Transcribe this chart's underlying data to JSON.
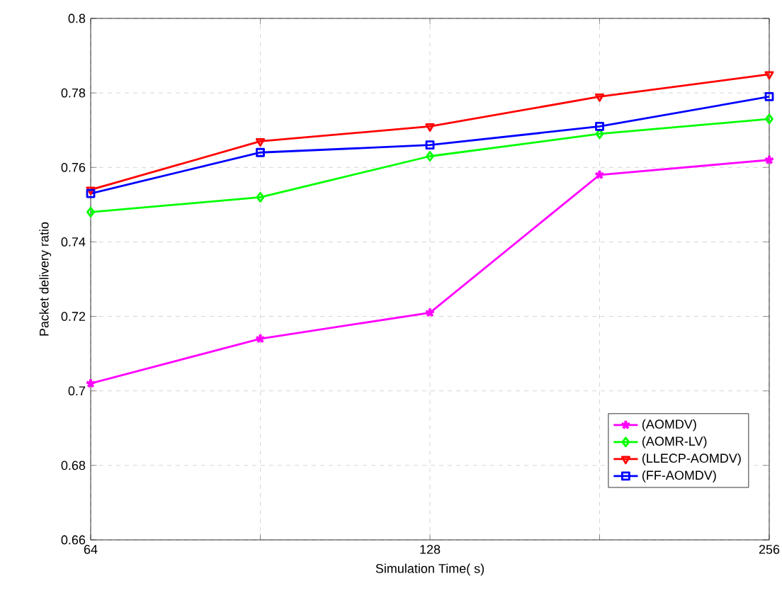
{
  "chart_data": {
    "type": "line",
    "xlabel": "Simulation Time( s)",
    "ylabel": "Packet delivery ratio",
    "categories": [
      "64",
      null,
      "128",
      null,
      "256"
    ],
    "ylim": [
      0.66,
      0.8
    ],
    "yticks": [
      0.66,
      0.68,
      0.7,
      0.72,
      0.74,
      0.76,
      0.78,
      0.8
    ],
    "grid": true,
    "legend": "bottom right",
    "line_style": "solid",
    "series": [
      {
        "name": "(AOMDV)",
        "color": "#ff00ff",
        "marker": "cross",
        "values": [
          0.702,
          0.714,
          0.721,
          0.758,
          0.762
        ]
      },
      {
        "name": "(AOMR-LV)",
        "color": "#00ff00",
        "marker": "diamond",
        "values": [
          0.748,
          0.752,
          0.763,
          0.769,
          0.773
        ]
      },
      {
        "name": "(LLECP-AOMDV)",
        "color": "#ff0000",
        "marker": "triangle",
        "values": [
          0.754,
          0.767,
          0.771,
          0.779,
          0.785
        ]
      },
      {
        "name": "(FF-AOMDV)",
        "color": "#0000ff",
        "marker": "square",
        "values": [
          0.753,
          0.764,
          0.766,
          0.771,
          0.779
        ]
      }
    ]
  }
}
